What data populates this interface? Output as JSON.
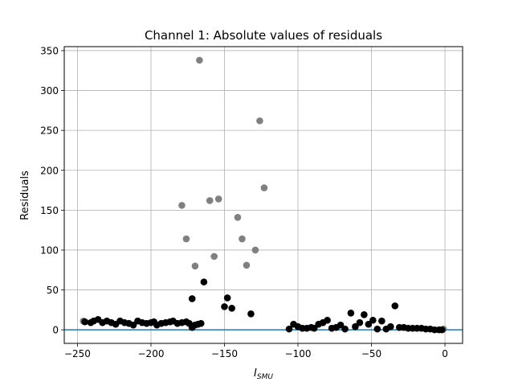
{
  "chart_data": {
    "type": "scatter",
    "title": "Channel 1: Absolute values of residuals",
    "xlabel_main": "I",
    "xlabel_sub": "SMU",
    "ylabel": "Residuals",
    "xlim": [
      -259,
      12
    ],
    "ylim": [
      -17,
      355
    ],
    "xticks": [
      -250,
      -200,
      -150,
      -100,
      -50,
      0
    ],
    "yticks": [
      0,
      50,
      100,
      150,
      200,
      250,
      300,
      350
    ],
    "xtick_labels": [
      "−250",
      "−200",
      "−150",
      "−100",
      "−50",
      "0"
    ],
    "ytick_labels": [
      "0",
      "50",
      "100",
      "150",
      "200",
      "250",
      "300",
      "350"
    ],
    "grid": true,
    "baseline": {
      "y": 0,
      "color": "#1f77b4"
    },
    "series": [
      {
        "color": "#808080",
        "points": [
          [
            -246,
            11
          ],
          [
            -167,
            338
          ],
          [
            -126,
            262
          ],
          [
            -123,
            178
          ],
          [
            -179,
            156
          ],
          [
            -160,
            162
          ],
          [
            -154,
            164
          ],
          [
            -176,
            114
          ],
          [
            -141,
            141
          ],
          [
            -138,
            114
          ],
          [
            -157,
            92
          ],
          [
            -170,
            80
          ],
          [
            -129,
            100
          ],
          [
            -135,
            81
          ],
          [
            -1,
            1
          ]
        ]
      },
      {
        "color": "#000000",
        "points": [
          [
            -245,
            10
          ],
          [
            -241,
            9
          ],
          [
            -239,
            11
          ],
          [
            -236,
            13
          ],
          [
            -233,
            9
          ],
          [
            -230,
            11
          ],
          [
            -227,
            9
          ],
          [
            -224,
            7
          ],
          [
            -221,
            11
          ],
          [
            -218,
            9
          ],
          [
            -215,
            8
          ],
          [
            -212,
            6
          ],
          [
            -209,
            11
          ],
          [
            -206,
            9
          ],
          [
            -203,
            8
          ],
          [
            -200,
            9
          ],
          [
            -198,
            10
          ],
          [
            -196,
            6
          ],
          [
            -193,
            8
          ],
          [
            -190,
            9
          ],
          [
            -187,
            10
          ],
          [
            -185,
            11
          ],
          [
            -182,
            8
          ],
          [
            -179,
            9
          ],
          [
            -176,
            10
          ],
          [
            -174,
            8
          ],
          [
            -172,
            3
          ],
          [
            -170,
            6
          ],
          [
            -168,
            7
          ],
          [
            -166,
            8
          ],
          [
            -172,
            39
          ],
          [
            -164,
            60
          ],
          [
            -148,
            40
          ],
          [
            -150,
            29
          ],
          [
            -145,
            27
          ],
          [
            -132,
            20
          ],
          [
            -106,
            1
          ],
          [
            -103,
            7
          ],
          [
            -100,
            4
          ],
          [
            -97,
            2
          ],
          [
            -94,
            2
          ],
          [
            -91,
            3
          ],
          [
            -89,
            2
          ],
          [
            -86,
            7
          ],
          [
            -83,
            9
          ],
          [
            -80,
            12
          ],
          [
            -77,
            2
          ],
          [
            -74,
            3
          ],
          [
            -71,
            6
          ],
          [
            -68,
            1
          ],
          [
            -64,
            21
          ],
          [
            -61,
            4
          ],
          [
            -58,
            9
          ],
          [
            -55,
            19
          ],
          [
            -52,
            7
          ],
          [
            -49,
            12
          ],
          [
            -46,
            1
          ],
          [
            -43,
            11
          ],
          [
            -40,
            1
          ],
          [
            -37,
            4
          ],
          [
            -34,
            30
          ],
          [
            -31,
            3
          ],
          [
            -28,
            3
          ],
          [
            -25,
            2
          ],
          [
            -22,
            2
          ],
          [
            -19,
            2
          ],
          [
            -16,
            2
          ],
          [
            -13,
            1
          ],
          [
            -10,
            1
          ],
          [
            -7,
            0
          ],
          [
            -4,
            0
          ],
          [
            -2,
            0
          ]
        ]
      }
    ]
  }
}
